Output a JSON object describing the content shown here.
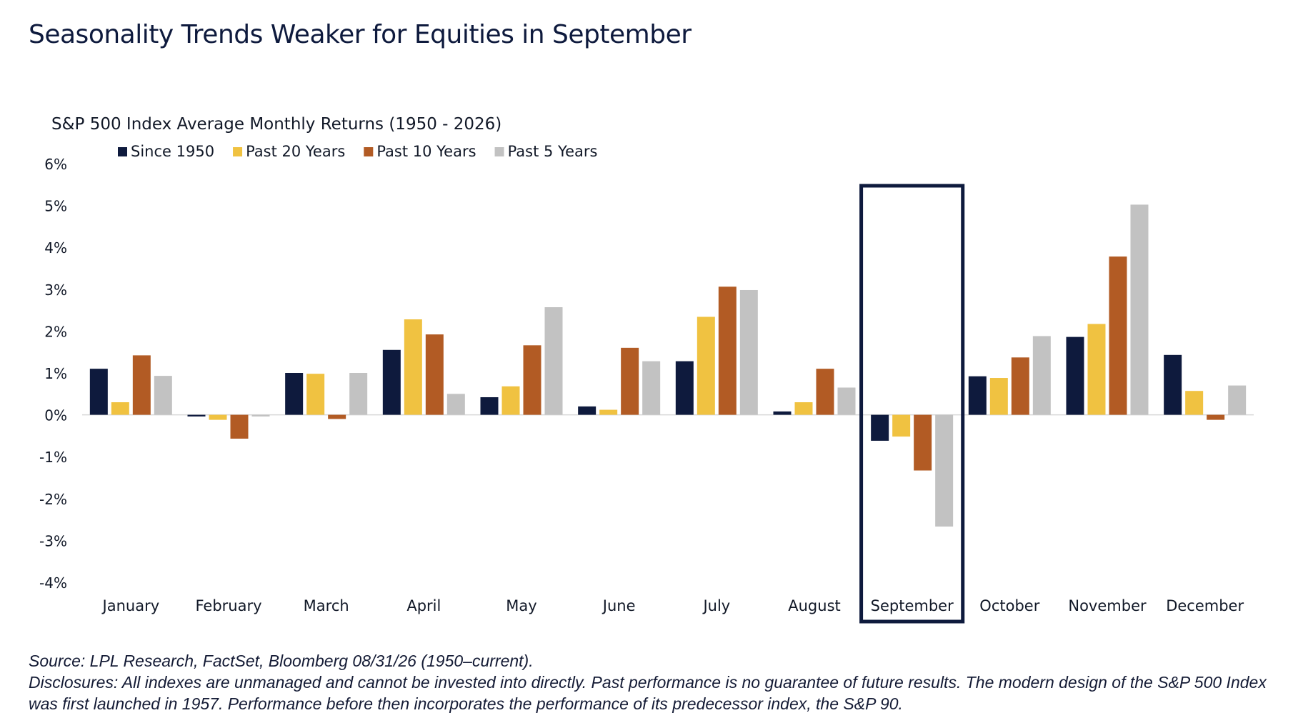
{
  "headline": "Seasonality Trends Weaker for Equities in September",
  "chart_data": {
    "type": "bar",
    "title": "S&P 500 Index Average Monthly Returns (1950 - 2026)",
    "xlabel": "",
    "ylabel": "",
    "categories": [
      "January",
      "February",
      "March",
      "April",
      "May",
      "June",
      "July",
      "August",
      "September",
      "October",
      "November",
      "December"
    ],
    "series": [
      {
        "name": "Since 1950",
        "color": "#0e1a3d",
        "values": [
          1.1,
          -0.04,
          1.0,
          1.55,
          0.42,
          0.2,
          1.28,
          0.08,
          -0.62,
          0.92,
          1.86,
          1.43
        ]
      },
      {
        "name": "Past 20 Years",
        "color": "#f0c241",
        "values": [
          0.3,
          -0.12,
          0.98,
          2.28,
          0.68,
          0.12,
          2.34,
          0.3,
          -0.52,
          0.88,
          2.17,
          0.57
        ]
      },
      {
        "name": "Past 10 Years",
        "color": "#b25b24",
        "values": [
          1.42,
          -0.57,
          -0.1,
          1.92,
          1.66,
          1.6,
          3.06,
          1.1,
          -1.33,
          1.37,
          3.78,
          -0.12
        ]
      },
      {
        "name": "Past 5 Years",
        "color": "#c2c2c2",
        "values": [
          0.93,
          -0.04,
          1.0,
          0.5,
          2.57,
          1.28,
          2.98,
          0.65,
          -2.67,
          1.88,
          5.02,
          0.7
        ]
      }
    ],
    "ylim": [
      -4,
      6
    ],
    "yticks": [
      6,
      5,
      4,
      3,
      2,
      1,
      0,
      -1,
      -2,
      -3,
      -4
    ],
    "ytick_labels": [
      "6%",
      "5%",
      "4%",
      "3%",
      "2%",
      "1%",
      "0%",
      "-1%",
      "-2%",
      "-3%",
      "-4%"
    ],
    "grid": false,
    "legend_position": "top-left",
    "highlight": {
      "category": "September",
      "color": "#0e1a3d"
    }
  },
  "footnotes": {
    "source": "Source: LPL Research, FactSet, Bloomberg 08/31/26 (1950–current).",
    "disclosures": "Disclosures: All indexes are unmanaged and cannot be invested into directly. Past performance is no guarantee of future results. The modern design of the S&P 500 Index was first launched in 1957. Performance before then incorporates the performance of its predecessor index, the S&P 90."
  }
}
